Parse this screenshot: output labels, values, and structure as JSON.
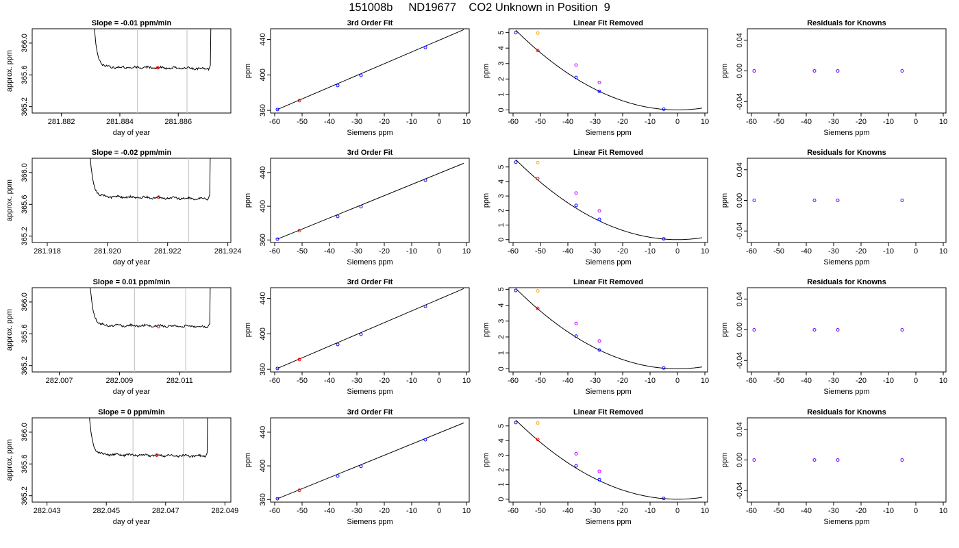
{
  "page_title": "151008b     ND19677    CO2 Unknown in Position  9",
  "chart_data": [
    {
      "id": "r1-trace",
      "type": "line",
      "title": "Slope =  -0.01  ppm/min",
      "xlabel": "day of year",
      "ylabel": "approx. ppm",
      "xlim": [
        281.881,
        281.8878
      ],
      "ylim": [
        365.12,
        366.18
      ],
      "xticks": [
        281.882,
        281.884,
        281.886
      ],
      "xtick_labels": [
        "281.882",
        "281.884",
        "281.886"
      ],
      "yticks": [
        365.2,
        365.6,
        366.0
      ],
      "ytick_labels": [
        "365.2",
        "365.6",
        "366.0"
      ],
      "vlines": [
        281.8846,
        281.8863
      ],
      "marker": {
        "x": 281.8853,
        "y": 365.69
      },
      "trace": {
        "x0": 281.883,
        "x1": 281.8871,
        "spike_height": 5,
        "baseline": 365.7,
        "trend": -0.02
      }
    },
    {
      "id": "r1-fit",
      "type": "scatter",
      "title": "3rd Order Fit",
      "xlabel": "Siemens ppm",
      "ylabel": "ppm",
      "xlim": [
        -61.5,
        11
      ],
      "ylim": [
        357,
        452
      ],
      "xticks": [
        -60,
        -50,
        -40,
        -30,
        -20,
        -10,
        0,
        10
      ],
      "xtick_labels": [
        "-60",
        "-50",
        "-40",
        "-30",
        "-20",
        "-10",
        "0",
        "10"
      ],
      "yticks": [
        360,
        400,
        440
      ],
      "ytick_labels": [
        "360",
        "400",
        "440"
      ],
      "line": {
        "x0": -59,
        "y0": 361,
        "x1": 9,
        "y1": 451
      },
      "points": [
        {
          "x": -59,
          "y": 361,
          "color": "#0000ff"
        },
        {
          "x": -51,
          "y": 371,
          "color": "#ff0000"
        },
        {
          "x": -37,
          "y": 388,
          "color": "#0000ff"
        },
        {
          "x": -28.5,
          "y": 399.5,
          "color": "#0000ff"
        },
        {
          "x": -5,
          "y": 431,
          "color": "#0000ff"
        }
      ]
    },
    {
      "id": "r1-lin",
      "type": "scatter",
      "title": "Linear Fit Removed",
      "xlabel": "Siemens ppm",
      "ylabel": "ppm",
      "xlim": [
        -61.5,
        11
      ],
      "ylim": [
        -0.2,
        5.25
      ],
      "xticks": [
        -60,
        -50,
        -40,
        -30,
        -20,
        -10,
        0,
        10
      ],
      "xtick_labels": [
        "-60",
        "-50",
        "-40",
        "-30",
        "-20",
        "-10",
        "0",
        "10"
      ],
      "yticks": [
        0,
        1,
        2,
        3,
        4,
        5
      ],
      "ytick_labels": [
        "0",
        "1",
        "2",
        "3",
        "4",
        "5"
      ],
      "curve": {
        "a": 0.00148,
        "c": 0,
        "x0": -59,
        "x1": 9
      },
      "points": [
        {
          "x": -59,
          "y": 5.0,
          "color": "#0000ff"
        },
        {
          "x": -51,
          "y": 3.85,
          "color": "#ff0000"
        },
        {
          "x": -51,
          "y": 4.97,
          "color": "#ffa500"
        },
        {
          "x": -37,
          "y": 2.1,
          "color": "#0000ff"
        },
        {
          "x": -37,
          "y": 2.9,
          "color": "#cc00ff"
        },
        {
          "x": -28.5,
          "y": 1.2,
          "color": "#0000ff"
        },
        {
          "x": -28.5,
          "y": 1.78,
          "color": "#cc00ff"
        },
        {
          "x": -5,
          "y": 0.05,
          "color": "#0000ff"
        }
      ]
    },
    {
      "id": "r1-res",
      "type": "scatter",
      "title": "Residuals for Knowns",
      "xlabel": "Siemens ppm",
      "ylabel": "ppm",
      "xlim": [
        -61.5,
        11
      ],
      "ylim": [
        -0.055,
        0.055
      ],
      "xticks": [
        -60,
        -50,
        -40,
        -30,
        -20,
        -10,
        0,
        10
      ],
      "xtick_labels": [
        "-60",
        "-50",
        "-40",
        "-30",
        "-20",
        "-10",
        "0",
        "10"
      ],
      "yticks": [
        -0.04,
        0.0,
        0.04
      ],
      "ytick_labels": [
        "-0.04",
        "0.00",
        "0.04"
      ],
      "points": [
        {
          "x": -59,
          "y": 0,
          "color": "#6600ff"
        },
        {
          "x": -37,
          "y": 0,
          "color": "#6600ff"
        },
        {
          "x": -28.5,
          "y": 0,
          "color": "#6600ff"
        },
        {
          "x": -5,
          "y": 0,
          "color": "#6600ff"
        }
      ]
    },
    {
      "id": "r2-trace",
      "type": "line",
      "title": "Slope =  -0.02  ppm/min",
      "xlabel": "day of year",
      "ylabel": "approx. ppm",
      "xlim": [
        281.9175,
        281.9241
      ],
      "ylim": [
        365.12,
        366.18
      ],
      "xticks": [
        281.918,
        281.92,
        281.922,
        281.924
      ],
      "xtick_labels": [
        "281.918",
        "281.920",
        "281.922",
        "281.924"
      ],
      "yticks": [
        365.2,
        365.6,
        366.0
      ],
      "ytick_labels": [
        "365.2",
        "365.6",
        "366.0"
      ],
      "vlines": [
        281.921,
        281.9227
      ],
      "marker": {
        "x": 281.9217,
        "y": 365.69
      },
      "trace": {
        "x0": 281.9193,
        "x1": 281.9234,
        "spike_height": 5,
        "baseline": 365.7,
        "trend": -0.03
      }
    },
    {
      "id": "r2-fit",
      "type": "scatter",
      "title": "3rd Order Fit",
      "xlabel": "Siemens ppm",
      "ylabel": "ppm",
      "xlim": [
        -61.5,
        11
      ],
      "ylim": [
        357,
        457
      ],
      "xticks": [
        -60,
        -50,
        -40,
        -30,
        -20,
        -10,
        0,
        10
      ],
      "xtick_labels": [
        "-60",
        "-50",
        "-40",
        "-30",
        "-20",
        "-10",
        "0",
        "10"
      ],
      "yticks": [
        360,
        400,
        440
      ],
      "ytick_labels": [
        "360",
        "400",
        "440"
      ],
      "line": {
        "x0": -59,
        "y0": 361,
        "x1": 9,
        "y1": 451
      },
      "points": [
        {
          "x": -59,
          "y": 361,
          "color": "#0000ff"
        },
        {
          "x": -51,
          "y": 371,
          "color": "#ff0000"
        },
        {
          "x": -37,
          "y": 388,
          "color": "#0000ff"
        },
        {
          "x": -28.5,
          "y": 399.5,
          "color": "#0000ff"
        },
        {
          "x": -5,
          "y": 431,
          "color": "#0000ff"
        }
      ]
    },
    {
      "id": "r2-lin",
      "type": "scatter",
      "title": "Linear Fit Removed",
      "xlabel": "Siemens ppm",
      "ylabel": "ppm",
      "xlim": [
        -61.5,
        11
      ],
      "ylim": [
        -0.2,
        5.6
      ],
      "xticks": [
        -60,
        -50,
        -40,
        -30,
        -20,
        -10,
        0,
        10
      ],
      "xtick_labels": [
        "-60",
        "-50",
        "-40",
        "-30",
        "-20",
        "-10",
        "0",
        "10"
      ],
      "yticks": [
        0,
        1,
        2,
        3,
        4,
        5
      ],
      "ytick_labels": [
        "0",
        "1",
        "2",
        "3",
        "4",
        "5"
      ],
      "curve": {
        "a": 0.00158,
        "c": 0,
        "x0": -59,
        "x1": 9
      },
      "points": [
        {
          "x": -59,
          "y": 5.33,
          "color": "#0000ff"
        },
        {
          "x": -51,
          "y": 4.2,
          "color": "#ff0000"
        },
        {
          "x": -51,
          "y": 5.3,
          "color": "#ffa500"
        },
        {
          "x": -37,
          "y": 2.35,
          "color": "#0000ff"
        },
        {
          "x": -37,
          "y": 3.2,
          "color": "#cc00ff"
        },
        {
          "x": -28.5,
          "y": 1.4,
          "color": "#0000ff"
        },
        {
          "x": -28.5,
          "y": 1.98,
          "color": "#cc00ff"
        },
        {
          "x": -5,
          "y": 0.05,
          "color": "#0000ff"
        }
      ]
    },
    {
      "id": "r2-res",
      "type": "scatter",
      "title": "Residuals for Knowns",
      "xlabel": "Siemens ppm",
      "ylabel": "ppm",
      "xlim": [
        -61.5,
        11
      ],
      "ylim": [
        -0.055,
        0.055
      ],
      "xticks": [
        -60,
        -50,
        -40,
        -30,
        -20,
        -10,
        0,
        10
      ],
      "xtick_labels": [
        "-60",
        "-50",
        "-40",
        "-30",
        "-20",
        "-10",
        "0",
        "10"
      ],
      "yticks": [
        -0.04,
        0.0,
        0.04
      ],
      "ytick_labels": [
        "-0.04",
        "0.00",
        "0.04"
      ],
      "points": [
        {
          "x": -59,
          "y": 0,
          "color": "#6600ff"
        },
        {
          "x": -37,
          "y": 0,
          "color": "#6600ff"
        },
        {
          "x": -28.5,
          "y": 0,
          "color": "#6600ff"
        },
        {
          "x": -5,
          "y": 0,
          "color": "#6600ff"
        }
      ]
    },
    {
      "id": "r3-trace",
      "type": "line",
      "title": "Slope =  0.01  ppm/min",
      "xlabel": "day of year",
      "ylabel": "approx. ppm",
      "xlim": [
        282.0061,
        282.0127
      ],
      "ylim": [
        365.12,
        366.18
      ],
      "xticks": [
        282.007,
        282.009,
        282.011
      ],
      "xtick_labels": [
        "282.007",
        "282.009",
        "282.011"
      ],
      "yticks": [
        365.2,
        365.6,
        366.0
      ],
      "ytick_labels": [
        "365.2",
        "365.6",
        "366.0"
      ],
      "vlines": [
        282.0095,
        282.0112
      ],
      "marker": {
        "x": 282.0103,
        "y": 365.69
      },
      "trace": {
        "x0": 282.0079,
        "x1": 282.012,
        "spike_height": 5,
        "baseline": 365.71,
        "trend": -0.02
      }
    },
    {
      "id": "r3-fit",
      "type": "scatter",
      "title": "3rd Order Fit",
      "xlabel": "Siemens ppm",
      "ylabel": "ppm",
      "xlim": [
        -61.5,
        11
      ],
      "ylim": [
        357,
        452
      ],
      "xticks": [
        -60,
        -50,
        -40,
        -30,
        -20,
        -10,
        0,
        10
      ],
      "xtick_labels": [
        "-60",
        "-50",
        "-40",
        "-30",
        "-20",
        "-10",
        "0",
        "10"
      ],
      "yticks": [
        360,
        400,
        440
      ],
      "ytick_labels": [
        "360",
        "400",
        "440"
      ],
      "line": {
        "x0": -59,
        "y0": 361,
        "x1": 9,
        "y1": 451
      },
      "points": [
        {
          "x": -59,
          "y": 361,
          "color": "#0000ff"
        },
        {
          "x": -51,
          "y": 371,
          "color": "#ff0000"
        },
        {
          "x": -37,
          "y": 388,
          "color": "#0000ff"
        },
        {
          "x": -28.5,
          "y": 399.5,
          "color": "#0000ff"
        },
        {
          "x": -5,
          "y": 431,
          "color": "#0000ff"
        }
      ]
    },
    {
      "id": "r3-lin",
      "type": "scatter",
      "title": "Linear Fit Removed",
      "xlabel": "Siemens ppm",
      "ylabel": "ppm",
      "xlim": [
        -61.5,
        11
      ],
      "ylim": [
        -0.2,
        5.1
      ],
      "xticks": [
        -60,
        -50,
        -40,
        -30,
        -20,
        -10,
        0,
        10
      ],
      "xtick_labels": [
        "-60",
        "-50",
        "-40",
        "-30",
        "-20",
        "-10",
        "0",
        "10"
      ],
      "yticks": [
        0,
        1,
        2,
        3,
        4,
        5
      ],
      "ytick_labels": [
        "0",
        "1",
        "2",
        "3",
        "4",
        "5"
      ],
      "curve": {
        "a": 0.00145,
        "c": 0,
        "x0": -59,
        "x1": 9
      },
      "points": [
        {
          "x": -59,
          "y": 4.93,
          "color": "#0000ff"
        },
        {
          "x": -51,
          "y": 3.8,
          "color": "#ff0000"
        },
        {
          "x": -51,
          "y": 4.9,
          "color": "#ffa500"
        },
        {
          "x": -37,
          "y": 2.05,
          "color": "#0000ff"
        },
        {
          "x": -37,
          "y": 2.85,
          "color": "#cc00ff"
        },
        {
          "x": -28.5,
          "y": 1.18,
          "color": "#0000ff"
        },
        {
          "x": -28.5,
          "y": 1.75,
          "color": "#cc00ff"
        },
        {
          "x": -5,
          "y": 0.05,
          "color": "#0000ff"
        }
      ]
    },
    {
      "id": "r3-res",
      "type": "scatter",
      "title": "Residuals for Knowns",
      "xlabel": "Siemens ppm",
      "ylabel": "ppm",
      "xlim": [
        -61.5,
        11
      ],
      "ylim": [
        -0.055,
        0.055
      ],
      "xticks": [
        -60,
        -50,
        -40,
        -30,
        -20,
        -10,
        0,
        10
      ],
      "xtick_labels": [
        "-60",
        "-50",
        "-40",
        "-30",
        "-20",
        "-10",
        "0",
        "10"
      ],
      "yticks": [
        -0.04,
        0.0,
        0.04
      ],
      "ytick_labels": [
        "-0.04",
        "0.00",
        "0.04"
      ],
      "points": [
        {
          "x": -59,
          "y": 0,
          "color": "#6600ff"
        },
        {
          "x": -37,
          "y": 0,
          "color": "#6600ff"
        },
        {
          "x": -28.5,
          "y": 0,
          "color": "#6600ff"
        },
        {
          "x": -5,
          "y": 0,
          "color": "#6600ff"
        }
      ]
    },
    {
      "id": "r4-trace",
      "type": "line",
      "title": "Slope =  0  ppm/min",
      "xlabel": "day of year",
      "ylabel": "approx. ppm",
      "xlim": [
        282.0425,
        282.0492
      ],
      "ylim": [
        365.12,
        366.18
      ],
      "xticks": [
        282.043,
        282.045,
        282.047,
        282.049
      ],
      "xtick_labels": [
        "282.043",
        "282.045",
        "282.047",
        "282.049"
      ],
      "yticks": [
        365.2,
        365.6,
        366.0
      ],
      "ytick_labels": [
        "365.2",
        "365.6",
        "366.0"
      ],
      "vlines": [
        282.0459,
        282.0476
      ],
      "marker": {
        "x": 282.0467,
        "y": 365.71
      },
      "trace": {
        "x0": 282.0443,
        "x1": 282.0484,
        "spike_height": 5,
        "baseline": 365.72,
        "trend": -0.02
      }
    },
    {
      "id": "r4-fit",
      "type": "scatter",
      "title": "3rd Order Fit",
      "xlabel": "Siemens ppm",
      "ylabel": "ppm",
      "xlim": [
        -61.5,
        11
      ],
      "ylim": [
        357,
        457
      ],
      "xticks": [
        -60,
        -50,
        -40,
        -30,
        -20,
        -10,
        0,
        10
      ],
      "xtick_labels": [
        "-60",
        "-50",
        "-40",
        "-30",
        "-20",
        "-10",
        "0",
        "10"
      ],
      "yticks": [
        360,
        400,
        440
      ],
      "ytick_labels": [
        "360",
        "400",
        "440"
      ],
      "line": {
        "x0": -59,
        "y0": 361,
        "x1": 9,
        "y1": 451
      },
      "points": [
        {
          "x": -59,
          "y": 361,
          "color": "#0000ff"
        },
        {
          "x": -51,
          "y": 371,
          "color": "#ff0000"
        },
        {
          "x": -37,
          "y": 388,
          "color": "#0000ff"
        },
        {
          "x": -28.5,
          "y": 399.5,
          "color": "#0000ff"
        },
        {
          "x": -5,
          "y": 431,
          "color": "#0000ff"
        }
      ]
    },
    {
      "id": "r4-lin",
      "type": "scatter",
      "title": "Linear Fit Removed",
      "xlabel": "Siemens ppm",
      "ylabel": "ppm",
      "xlim": [
        -61.5,
        11
      ],
      "ylim": [
        -0.2,
        5.55
      ],
      "xticks": [
        -60,
        -50,
        -40,
        -30,
        -20,
        -10,
        0,
        10
      ],
      "xtick_labels": [
        "-60",
        "-50",
        "-40",
        "-30",
        "-20",
        "-10",
        "0",
        "10"
      ],
      "yticks": [
        0,
        1,
        2,
        3,
        4,
        5
      ],
      "ytick_labels": [
        "0",
        "1",
        "2",
        "3",
        "4",
        "5"
      ],
      "curve": {
        "a": 0.00155,
        "c": 0,
        "x0": -59,
        "x1": 9
      },
      "points": [
        {
          "x": -59,
          "y": 5.23,
          "color": "#0000ff"
        },
        {
          "x": -51,
          "y": 4.08,
          "color": "#ff0000"
        },
        {
          "x": -51,
          "y": 5.2,
          "color": "#ffa500"
        },
        {
          "x": -37,
          "y": 2.27,
          "color": "#0000ff"
        },
        {
          "x": -37,
          "y": 3.1,
          "color": "#cc00ff"
        },
        {
          "x": -28.5,
          "y": 1.33,
          "color": "#0000ff"
        },
        {
          "x": -28.5,
          "y": 1.9,
          "color": "#cc00ff"
        },
        {
          "x": -5,
          "y": 0.05,
          "color": "#0000ff"
        }
      ]
    },
    {
      "id": "r4-res",
      "type": "scatter",
      "title": "Residuals for Knowns",
      "xlabel": "Siemens ppm",
      "ylabel": "ppm",
      "xlim": [
        -61.5,
        11
      ],
      "ylim": [
        -0.055,
        0.055
      ],
      "xticks": [
        -60,
        -50,
        -40,
        -30,
        -20,
        -10,
        0,
        10
      ],
      "xtick_labels": [
        "-60",
        "-50",
        "-40",
        "-30",
        "-20",
        "-10",
        "0",
        "10"
      ],
      "yticks": [
        -0.04,
        0.0,
        0.04
      ],
      "ytick_labels": [
        "-0.04",
        "0.00",
        "0.04"
      ],
      "points": [
        {
          "x": -59,
          "y": 0,
          "color": "#6600ff"
        },
        {
          "x": -37,
          "y": 0,
          "color": "#6600ff"
        },
        {
          "x": -28.5,
          "y": 0,
          "color": "#6600ff"
        },
        {
          "x": -5,
          "y": 0,
          "color": "#6600ff"
        }
      ]
    }
  ]
}
